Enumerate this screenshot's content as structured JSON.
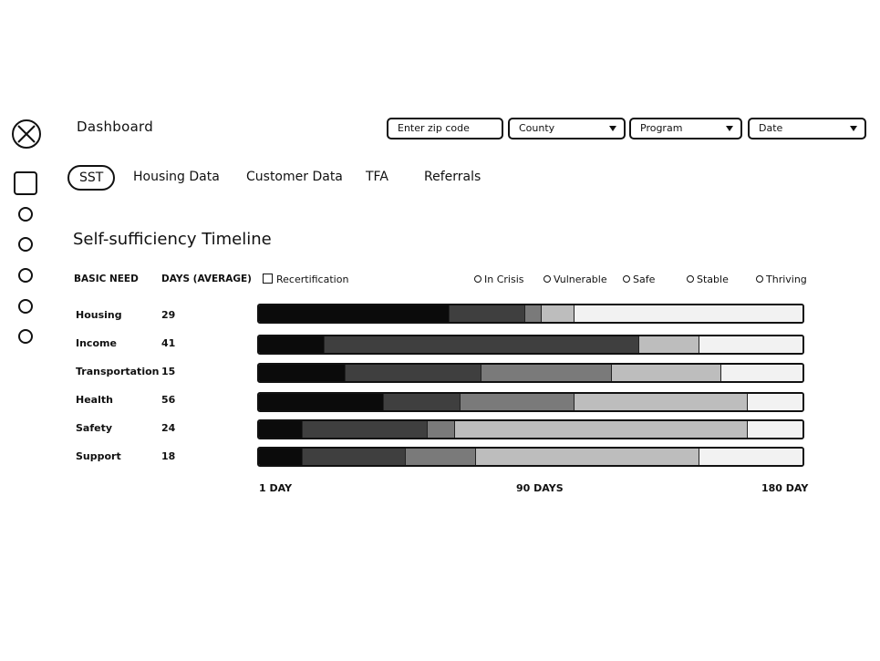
{
  "header": {
    "title": "Dashboard",
    "zipcode_placeholder": "Enter zip code",
    "county_label": "County",
    "program_label": "Program",
    "date_label": "Date"
  },
  "tabs": [
    "SST",
    "Housing Data",
    "Customer Data",
    "TFA",
    "Referrals"
  ],
  "section": {
    "title": "Self-sufficiency Timeline",
    "col_need": "BASIC NEED",
    "col_days": "DAYS (AVERAGE)",
    "recertification": "Recertification"
  },
  "legend": [
    "In Crisis",
    "Vulnerable",
    "Safe",
    "Stable",
    "Thriving"
  ],
  "colors": {
    "crisis": "#0b0b0b",
    "vulnerable": "#3f3f3f",
    "safe": "#7a7a7a",
    "stable": "#bdbdbd",
    "thriving": "#f2f2f2"
  },
  "rows": [
    {
      "need": "Housing",
      "days": "29",
      "segments": [
        0.35,
        0.14,
        0.03,
        0.06,
        0.42
      ]
    },
    {
      "need": "Income",
      "days": "41",
      "segments": [
        0.12,
        0.58,
        0.0,
        0.11,
        0.19
      ]
    },
    {
      "need": "Transportation",
      "days": "15",
      "segments": [
        0.16,
        0.25,
        0.24,
        0.2,
        0.15
      ]
    },
    {
      "need": "Health",
      "days": "56",
      "segments": [
        0.23,
        0.14,
        0.21,
        0.32,
        0.1
      ]
    },
    {
      "need": "Safety",
      "days": "24",
      "segments": [
        0.08,
        0.23,
        0.05,
        0.54,
        0.1
      ]
    },
    {
      "need": "Support",
      "days": "18",
      "segments": [
        0.08,
        0.19,
        0.13,
        0.41,
        0.19
      ]
    }
  ],
  "axis": {
    "start": "1 DAY",
    "mid": "90 DAYS",
    "end": "180 DAY"
  }
}
